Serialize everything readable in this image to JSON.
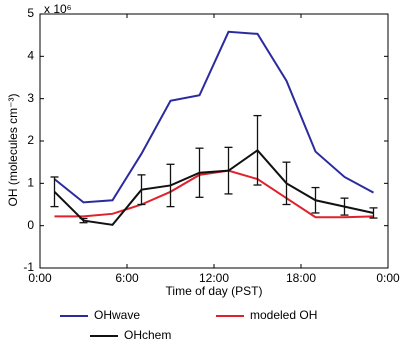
{
  "chart_data": {
    "type": "line",
    "multiplier": "x 10⁶",
    "xlabel": "Time of day (PST)",
    "ylabel": "OH (molecules cm⁻³)",
    "x": [
      1,
      3,
      5,
      7,
      9,
      11,
      13,
      15,
      17,
      19,
      21,
      23
    ],
    "xlim": [
      0,
      24
    ],
    "xticks": [
      {
        "value": 0,
        "label": "0:00"
      },
      {
        "value": 6,
        "label": "6:00"
      },
      {
        "value": 12,
        "label": "12:00"
      },
      {
        "value": 18,
        "label": "18:00"
      },
      {
        "value": 24,
        "label": "0:00"
      }
    ],
    "ylim": [
      -1,
      5
    ],
    "yticks": [
      -1,
      0,
      1,
      2,
      3,
      4,
      5
    ],
    "series": [
      {
        "name": "OHwave",
        "color": "#2b2b9e",
        "values": [
          1.1,
          0.55,
          0.6,
          1.7,
          2.95,
          3.08,
          4.58,
          4.53,
          3.42,
          1.75,
          1.15,
          0.78
        ]
      },
      {
        "name": "modeled OH",
        "color": "#e0202a",
        "values": [
          0.22,
          0.22,
          0.28,
          0.5,
          0.8,
          1.2,
          1.3,
          1.1,
          0.65,
          0.2,
          0.2,
          0.22
        ]
      },
      {
        "name": "OHchem",
        "color": "#111111",
        "values": [
          0.8,
          0.12,
          0.02,
          0.85,
          0.95,
          1.25,
          1.3,
          1.78,
          1.0,
          0.6,
          0.45,
          0.3
        ],
        "errors": [
          0.35,
          0.05,
          null,
          0.35,
          0.5,
          0.58,
          0.55,
          0.82,
          0.5,
          0.3,
          0.2,
          0.12
        ]
      }
    ]
  }
}
